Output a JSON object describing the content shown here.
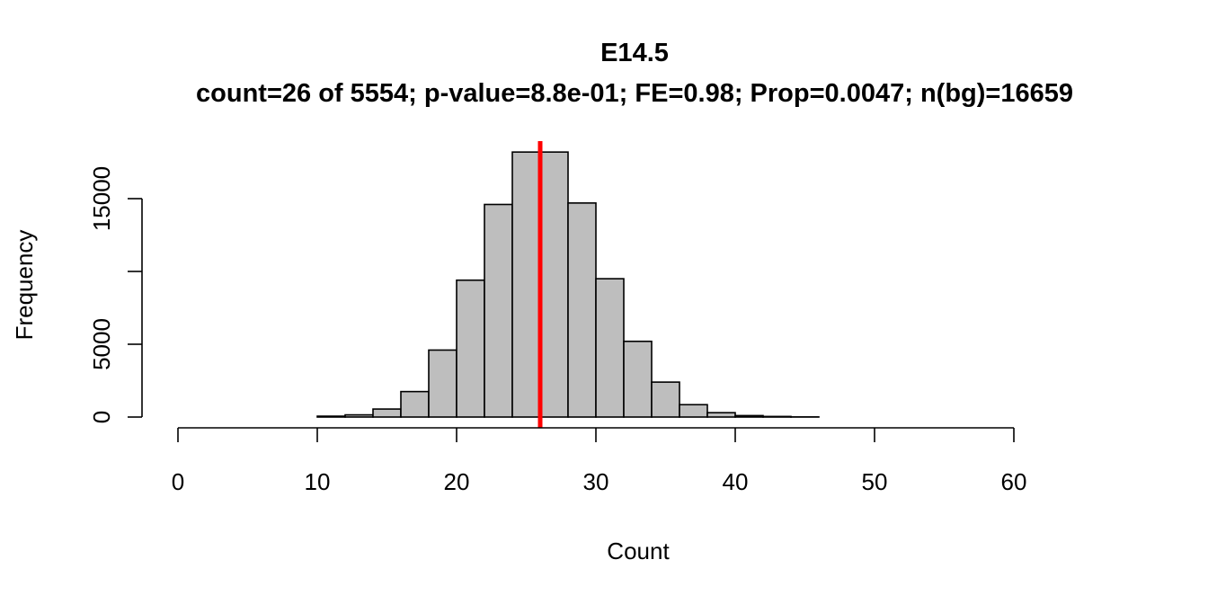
{
  "chart_data": {
    "type": "bar",
    "title": "E14.5",
    "subtitle": "count=26 of 5554; p-value=8.8e-01; FE=0.98; Prop=0.0047; n(bg)=16659",
    "xlabel": "Count",
    "ylabel": "Frequency",
    "xlim": [
      0,
      60
    ],
    "ylim": [
      0,
      18000
    ],
    "x_ticks": [
      "0",
      "10",
      "20",
      "30",
      "40",
      "50",
      "60"
    ],
    "y_ticks": [
      "0",
      "5000",
      "15000"
    ],
    "bins": [
      {
        "x0": 10,
        "x1": 12,
        "value": 60
      },
      {
        "x0": 12,
        "x1": 14,
        "value": 150
      },
      {
        "x0": 14,
        "x1": 16,
        "value": 550
      },
      {
        "x0": 16,
        "x1": 18,
        "value": 1750
      },
      {
        "x0": 18,
        "x1": 20,
        "value": 4600
      },
      {
        "x0": 20,
        "x1": 22,
        "value": 9400
      },
      {
        "x0": 22,
        "x1": 24,
        "value": 14600
      },
      {
        "x0": 24,
        "x1": 26,
        "value": 18200
      },
      {
        "x0": 26,
        "x1": 28,
        "value": 18200
      },
      {
        "x0": 28,
        "x1": 30,
        "value": 14700
      },
      {
        "x0": 30,
        "x1": 32,
        "value": 9500
      },
      {
        "x0": 32,
        "x1": 34,
        "value": 5200
      },
      {
        "x0": 34,
        "x1": 36,
        "value": 2400
      },
      {
        "x0": 36,
        "x1": 38,
        "value": 850
      },
      {
        "x0": 38,
        "x1": 40,
        "value": 300
      },
      {
        "x0": 40,
        "x1": 42,
        "value": 100
      },
      {
        "x0": 42,
        "x1": 44,
        "value": 40
      },
      {
        "x0": 44,
        "x1": 46,
        "value": 10
      }
    ],
    "observed_line": {
      "x": 26,
      "color": "#ff0000"
    },
    "bar_color": "#bebebe",
    "bar_border": "#000000",
    "grid": false
  }
}
